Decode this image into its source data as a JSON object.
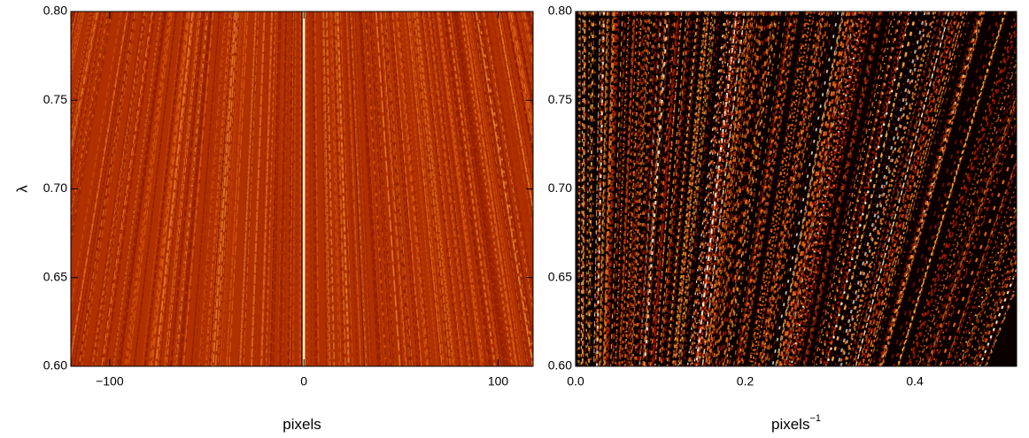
{
  "chart_data": [
    {
      "type": "heatmap",
      "xlabel": "pixels",
      "ylabel": "λ",
      "xlim": [
        -120,
        118
      ],
      "xticks": [
        {
          "value": -100,
          "label": "−100"
        },
        0,
        100
      ],
      "ylim": [
        0.6,
        0.8
      ],
      "yticks": [
        {
          "value": 0.6,
          "label": "0.60"
        },
        0.65,
        {
          "value": 0.7,
          "label": "0.70"
        },
        0.75,
        {
          "value": 0.8,
          "label": "0.80"
        }
      ]
    },
    {
      "type": "heatmap",
      "xlabel": "pixels",
      "xlabel_sup": "−1",
      "xlim": [
        0,
        0.52
      ],
      "xticks": [
        {
          "value": 0,
          "label": "0.0"
        },
        0.2,
        0.4
      ],
      "ylim": [
        0.6,
        0.8
      ],
      "yticks": [
        {
          "value": 0.6,
          "label": "0.60"
        },
        0.65,
        {
          "value": 0.7,
          "label": "0.70"
        },
        0.75,
        {
          "value": 0.8,
          "label": "0.80"
        }
      ]
    }
  ]
}
